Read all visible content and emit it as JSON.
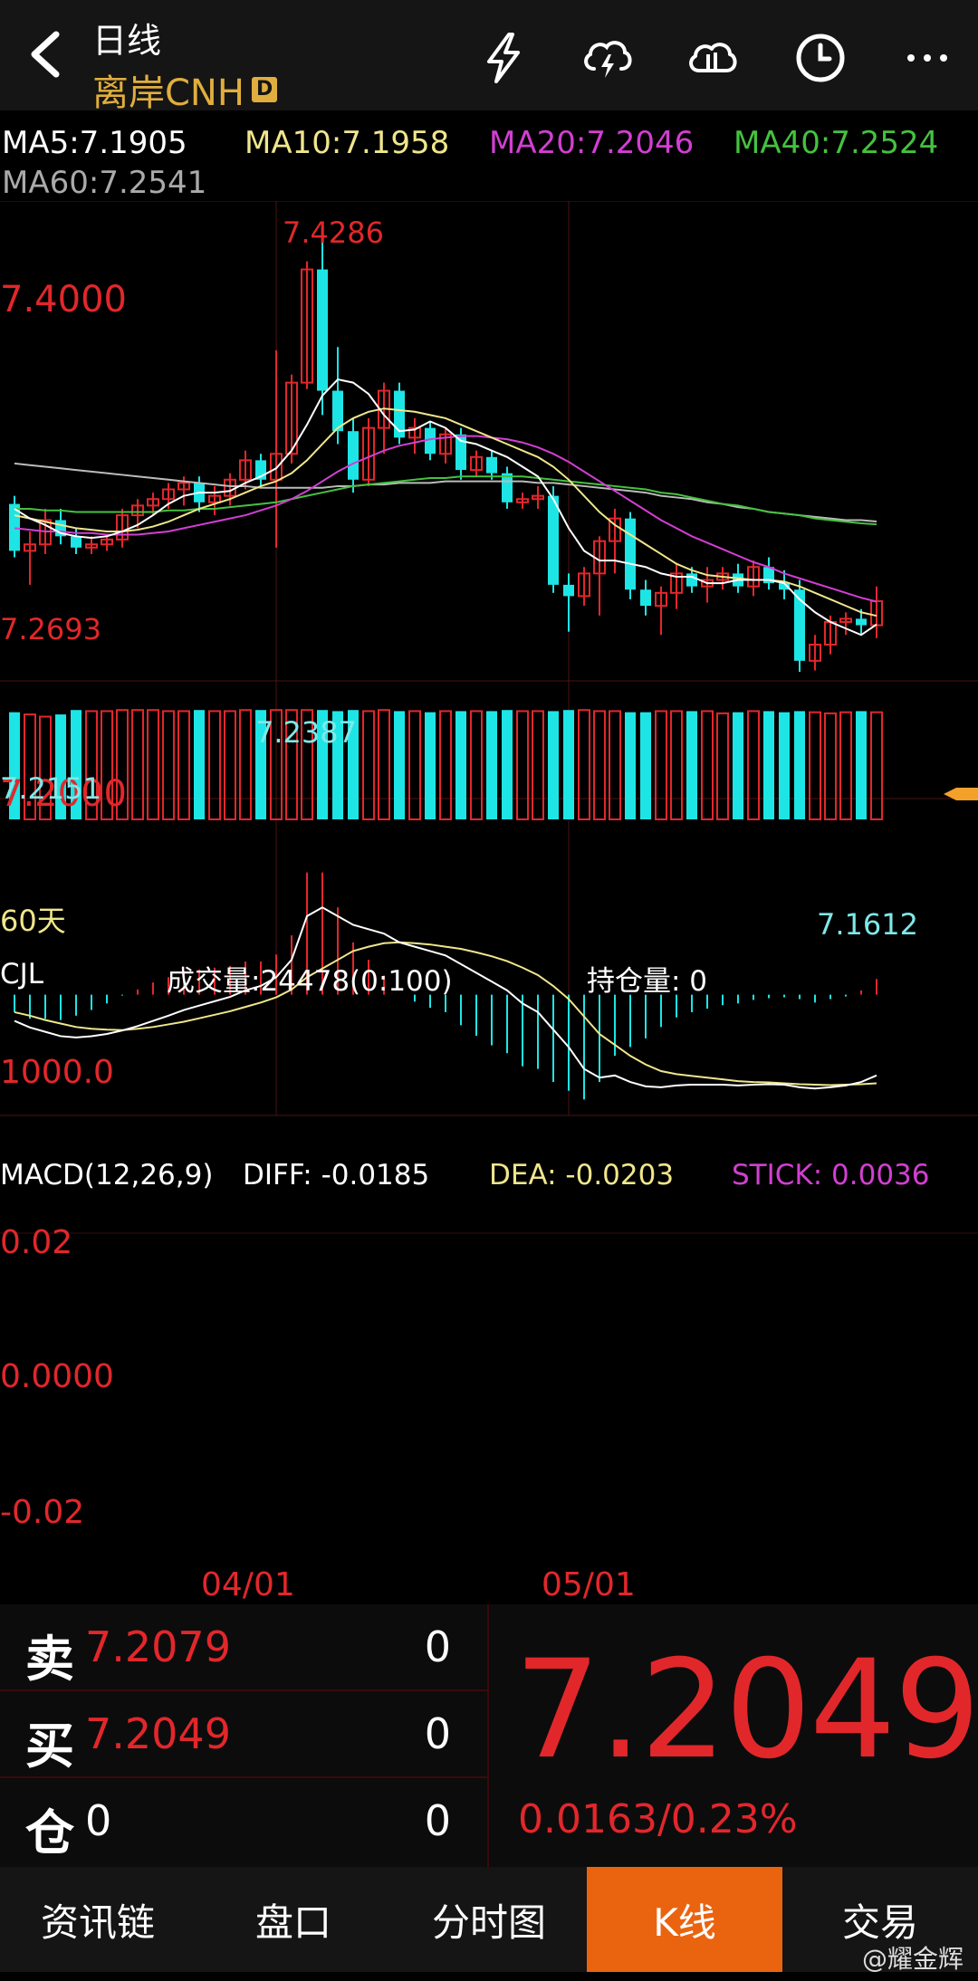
{
  "header": {
    "period": "日线",
    "symbol": "离岸CNH",
    "badge": "D",
    "icons": [
      "flash-icon",
      "cloud-lightning-icon",
      "cloud-compare-icon",
      "clock-icon",
      "more-icon"
    ]
  },
  "ma": {
    "ma5": "MA5:7.1905",
    "ma10": "MA10:7.1958",
    "ma20": "MA20:7.2046",
    "ma40": "MA40:7.2524",
    "ma60": "MA60:7.2541",
    "colors": {
      "ma5": "#ffffff",
      "ma10": "#f0e68c",
      "ma20": "#d23fd2",
      "ma40": "#44c23f",
      "ma60": "#bbbbbb"
    }
  },
  "price_chart": {
    "high_label": "7.4286",
    "low_label": "7.1612",
    "label_left_high": "7.2693",
    "label_left_low": "7.2151",
    "label_mid_low": "7.2387",
    "axis_top": "7.4000",
    "axis_bottom": "7.2000",
    "range_label": "60天"
  },
  "volume": {
    "name": "CJL",
    "volume_text": "成交量:24478(0:100)",
    "oi_text": "持仓量: 0",
    "axis": "1000.0"
  },
  "macd": {
    "name": "MACD(12,26,9)",
    "diff": "DIFF: -0.0185",
    "dea": "DEA: -0.0203",
    "stick": "STICK: 0.0036",
    "axis_top": "0.02",
    "axis_mid": "0.0000",
    "axis_bottom": "-0.02"
  },
  "dates": [
    "04/01",
    "05/01"
  ],
  "quote": {
    "sell_label": "卖",
    "sell_price": "7.2079",
    "sell_vol": "0",
    "buy_label": "买",
    "buy_price": "7.2049",
    "buy_vol": "0",
    "pos_label": "仓",
    "pos_value": "0",
    "pos_vol": "0",
    "last_price": "7.2049",
    "change": "0.0163/0.23%"
  },
  "tabs": [
    "资讯链",
    "盘口",
    "分时图",
    "K线",
    "交易"
  ],
  "active_tab": "K线",
  "watermark": "@耀金辉",
  "chart_data": {
    "type": "candlestick",
    "candles": [
      {
        "o": 7.265,
        "h": 7.27,
        "l": 7.232,
        "c": 7.236
      },
      {
        "o": 7.236,
        "h": 7.248,
        "l": 7.215,
        "c": 7.24
      },
      {
        "o": 7.24,
        "h": 7.262,
        "l": 7.234,
        "c": 7.255
      },
      {
        "o": 7.255,
        "h": 7.262,
        "l": 7.24,
        "c": 7.245
      },
      {
        "o": 7.245,
        "h": 7.25,
        "l": 7.234,
        "c": 7.238
      },
      {
        "o": 7.238,
        "h": 7.245,
        "l": 7.234,
        "c": 7.24
      },
      {
        "o": 7.24,
        "h": 7.246,
        "l": 7.236,
        "c": 7.243
      },
      {
        "o": 7.243,
        "h": 7.262,
        "l": 7.238,
        "c": 7.258
      },
      {
        "o": 7.258,
        "h": 7.268,
        "l": 7.25,
        "c": 7.264
      },
      {
        "o": 7.264,
        "h": 7.272,
        "l": 7.258,
        "c": 7.268
      },
      {
        "o": 7.268,
        "h": 7.278,
        "l": 7.262,
        "c": 7.274
      },
      {
        "o": 7.274,
        "h": 7.282,
        "l": 7.264,
        "c": 7.278
      },
      {
        "o": 7.278,
        "h": 7.282,
        "l": 7.26,
        "c": 7.266
      },
      {
        "o": 7.266,
        "h": 7.276,
        "l": 7.258,
        "c": 7.27
      },
      {
        "o": 7.27,
        "h": 7.284,
        "l": 7.264,
        "c": 7.28
      },
      {
        "o": 7.28,
        "h": 7.298,
        "l": 7.274,
        "c": 7.292
      },
      {
        "o": 7.292,
        "h": 7.296,
        "l": 7.276,
        "c": 7.28
      },
      {
        "o": 7.28,
        "h": 7.36,
        "l": 7.238,
        "c": 7.296
      },
      {
        "o": 7.296,
        "h": 7.345,
        "l": 7.29,
        "c": 7.34
      },
      {
        "o": 7.34,
        "h": 7.415,
        "l": 7.336,
        "c": 7.41
      },
      {
        "o": 7.41,
        "h": 7.4286,
        "l": 7.32,
        "c": 7.335
      },
      {
        "o": 7.335,
        "h": 7.362,
        "l": 7.302,
        "c": 7.31
      },
      {
        "o": 7.31,
        "h": 7.318,
        "l": 7.272,
        "c": 7.28
      },
      {
        "o": 7.28,
        "h": 7.318,
        "l": 7.276,
        "c": 7.312
      },
      {
        "o": 7.312,
        "h": 7.34,
        "l": 7.296,
        "c": 7.335
      },
      {
        "o": 7.335,
        "h": 7.34,
        "l": 7.302,
        "c": 7.306
      },
      {
        "o": 7.306,
        "h": 7.318,
        "l": 7.296,
        "c": 7.312
      },
      {
        "o": 7.312,
        "h": 7.316,
        "l": 7.292,
        "c": 7.296
      },
      {
        "o": 7.296,
        "h": 7.312,
        "l": 7.29,
        "c": 7.308
      },
      {
        "o": 7.308,
        "h": 7.312,
        "l": 7.28,
        "c": 7.286
      },
      {
        "o": 7.286,
        "h": 7.298,
        "l": 7.282,
        "c": 7.294
      },
      {
        "o": 7.294,
        "h": 7.298,
        "l": 7.28,
        "c": 7.284
      },
      {
        "o": 7.284,
        "h": 7.288,
        "l": 7.262,
        "c": 7.266
      },
      {
        "o": 7.266,
        "h": 7.272,
        "l": 7.262,
        "c": 7.268
      },
      {
        "o": 7.268,
        "h": 7.276,
        "l": 7.262,
        "c": 7.27
      },
      {
        "o": 7.27,
        "h": 7.276,
        "l": 7.21,
        "c": 7.215
      },
      {
        "o": 7.215,
        "h": 7.222,
        "l": 7.186,
        "c": 7.208
      },
      {
        "o": 7.208,
        "h": 7.226,
        "l": 7.202,
        "c": 7.222
      },
      {
        "o": 7.222,
        "h": 7.245,
        "l": 7.196,
        "c": 7.242
      },
      {
        "o": 7.242,
        "h": 7.262,
        "l": 7.222,
        "c": 7.256
      },
      {
        "o": 7.256,
        "h": 7.26,
        "l": 7.206,
        "c": 7.212
      },
      {
        "o": 7.212,
        "h": 7.218,
        "l": 7.196,
        "c": 7.202
      },
      {
        "o": 7.202,
        "h": 7.214,
        "l": 7.184,
        "c": 7.21
      },
      {
        "o": 7.21,
        "h": 7.228,
        "l": 7.2,
        "c": 7.222
      },
      {
        "o": 7.222,
        "h": 7.226,
        "l": 7.21,
        "c": 7.214
      },
      {
        "o": 7.214,
        "h": 7.226,
        "l": 7.204,
        "c": 7.218
      },
      {
        "o": 7.218,
        "h": 7.226,
        "l": 7.212,
        "c": 7.222
      },
      {
        "o": 7.222,
        "h": 7.228,
        "l": 7.21,
        "c": 7.214
      },
      {
        "o": 7.214,
        "h": 7.23,
        "l": 7.208,
        "c": 7.226
      },
      {
        "o": 7.226,
        "h": 7.232,
        "l": 7.212,
        "c": 7.216
      },
      {
        "o": 7.216,
        "h": 7.224,
        "l": 7.206,
        "c": 7.212
      },
      {
        "o": 7.212,
        "h": 7.218,
        "l": 7.1612,
        "c": 7.168
      },
      {
        "o": 7.168,
        "h": 7.184,
        "l": 7.162,
        "c": 7.178
      },
      {
        "o": 7.178,
        "h": 7.196,
        "l": 7.172,
        "c": 7.192
      },
      {
        "o": 7.192,
        "h": 7.198,
        "l": 7.184,
        "c": 7.194
      },
      {
        "o": 7.194,
        "h": 7.2,
        "l": 7.184,
        "c": 7.19
      },
      {
        "o": 7.19,
        "h": 7.214,
        "l": 7.182,
        "c": 7.2049
      }
    ],
    "ma5": [
      7.262,
      7.256,
      7.252,
      7.247,
      7.245,
      7.244,
      7.245,
      7.248,
      7.252,
      7.258,
      7.265,
      7.27,
      7.272,
      7.272,
      7.273,
      7.278,
      7.282,
      7.287,
      7.298,
      7.314,
      7.332,
      7.342,
      7.34,
      7.333,
      7.32,
      7.31,
      7.311,
      7.316,
      7.312,
      7.304,
      7.302,
      7.298,
      7.294,
      7.288,
      7.282,
      7.268,
      7.25,
      7.236,
      7.23,
      7.23,
      7.228,
      7.226,
      7.222,
      7.22,
      7.22,
      7.216,
      7.216,
      7.218,
      7.218,
      7.218,
      7.216,
      7.206,
      7.198,
      7.192,
      7.188,
      7.184,
      7.1905
    ],
    "ma10": [
      7.258,
      7.256,
      7.254,
      7.252,
      7.25,
      7.249,
      7.248,
      7.248,
      7.249,
      7.251,
      7.254,
      7.258,
      7.262,
      7.265,
      7.268,
      7.272,
      7.276,
      7.279,
      7.284,
      7.292,
      7.302,
      7.312,
      7.318,
      7.322,
      7.324,
      7.323,
      7.322,
      7.32,
      7.318,
      7.314,
      7.31,
      7.306,
      7.302,
      7.298,
      7.294,
      7.288,
      7.28,
      7.27,
      7.26,
      7.252,
      7.246,
      7.24,
      7.234,
      7.228,
      7.224,
      7.221,
      7.22,
      7.219,
      7.218,
      7.218,
      7.217,
      7.214,
      7.21,
      7.206,
      7.202,
      7.198,
      7.1958
    ],
    "ma20": [
      7.25,
      7.249,
      7.248,
      7.248,
      7.247,
      7.247,
      7.246,
      7.246,
      7.246,
      7.247,
      7.248,
      7.25,
      7.252,
      7.254,
      7.256,
      7.258,
      7.261,
      7.264,
      7.268,
      7.273,
      7.279,
      7.285,
      7.29,
      7.294,
      7.298,
      7.301,
      7.303,
      7.305,
      7.306,
      7.307,
      7.307,
      7.306,
      7.305,
      7.303,
      7.3,
      7.296,
      7.291,
      7.285,
      7.279,
      7.273,
      7.267,
      7.261,
      7.255,
      7.25,
      7.245,
      7.241,
      7.237,
      7.233,
      7.229,
      7.226,
      7.222,
      7.219,
      7.216,
      7.213,
      7.21,
      7.207,
      7.2046
    ],
    "ma40": [
      7.262,
      7.262,
      7.261,
      7.261,
      7.26,
      7.26,
      7.26,
      7.26,
      7.26,
      7.26,
      7.261,
      7.261,
      7.262,
      7.262,
      7.263,
      7.264,
      7.265,
      7.266,
      7.268,
      7.27,
      7.272,
      7.274,
      7.276,
      7.277,
      7.278,
      7.279,
      7.28,
      7.281,
      7.281,
      7.282,
      7.282,
      7.282,
      7.282,
      7.282,
      7.281,
      7.28,
      7.279,
      7.278,
      7.277,
      7.276,
      7.275,
      7.274,
      7.272,
      7.271,
      7.269,
      7.267,
      7.265,
      7.264,
      7.262,
      7.26,
      7.259,
      7.258,
      7.256,
      7.255,
      7.254,
      7.253,
      7.2524
    ],
    "ma60": [
      7.29,
      7.289,
      7.288,
      7.287,
      7.286,
      7.285,
      7.284,
      7.283,
      7.282,
      7.281,
      7.28,
      7.279,
      7.278,
      7.277,
      7.276,
      7.276,
      7.275,
      7.275,
      7.275,
      7.275,
      7.275,
      7.276,
      7.276,
      7.277,
      7.277,
      7.278,
      7.278,
      7.278,
      7.279,
      7.279,
      7.279,
      7.279,
      7.279,
      7.279,
      7.278,
      7.278,
      7.277,
      7.276,
      7.275,
      7.274,
      7.273,
      7.272,
      7.27,
      7.269,
      7.268,
      7.266,
      7.265,
      7.263,
      7.262,
      7.26,
      7.259,
      7.258,
      7.257,
      7.256,
      7.255,
      7.255,
      7.2541
    ],
    "volume_relative": [
      0.97,
      0.95,
      0.93,
      0.95,
      0.99,
      0.98,
      0.98,
      0.99,
      0.99,
      0.99,
      0.98,
      0.98,
      0.99,
      0.98,
      0.98,
      0.99,
      0.99,
      0.99,
      0.99,
      0.99,
      0.99,
      0.98,
      0.99,
      0.98,
      0.99,
      0.98,
      0.98,
      0.97,
      0.98,
      0.98,
      0.98,
      0.98,
      0.99,
      0.98,
      0.98,
      0.98,
      0.99,
      0.99,
      0.98,
      0.98,
      0.97,
      0.97,
      0.98,
      0.98,
      0.98,
      0.98,
      0.96,
      0.97,
      0.98,
      0.98,
      0.97,
      0.98,
      0.97,
      0.96,
      0.97,
      0.98,
      0.97
    ],
    "macd_diff": [
      -0.006,
      -0.0075,
      -0.0085,
      -0.0095,
      -0.0098,
      -0.0095,
      -0.009,
      -0.0082,
      -0.0072,
      -0.006,
      -0.0048,
      -0.0035,
      -0.0025,
      -0.0015,
      -0.0005,
      0.001,
      0.002,
      0.004,
      0.008,
      0.018,
      0.02,
      0.018,
      0.016,
      0.015,
      0.014,
      0.012,
      0.011,
      0.01,
      0.009,
      0.007,
      0.005,
      0.003,
      0.001,
      -0.002,
      -0.004,
      -0.008,
      -0.012,
      -0.017,
      -0.019,
      -0.0185,
      -0.02,
      -0.021,
      -0.0212,
      -0.0208,
      -0.0206,
      -0.0206,
      -0.0206,
      -0.0208,
      -0.0206,
      -0.0205,
      -0.0206,
      -0.0212,
      -0.0215,
      -0.0212,
      -0.0208,
      -0.02,
      -0.0185
    ],
    "macd_dea": [
      -0.004,
      -0.0048,
      -0.0058,
      -0.0066,
      -0.0074,
      -0.0078,
      -0.008,
      -0.0081,
      -0.0078,
      -0.0074,
      -0.0068,
      -0.0062,
      -0.0054,
      -0.0046,
      -0.0038,
      -0.0028,
      -0.0018,
      -0.0006,
      0.0012,
      0.004,
      0.006,
      0.008,
      0.01,
      0.011,
      0.0118,
      0.012,
      0.0118,
      0.0115,
      0.011,
      0.0105,
      0.0097,
      0.0088,
      0.0077,
      0.0062,
      0.0045,
      0.002,
      -0.001,
      -0.005,
      -0.009,
      -0.0115,
      -0.014,
      -0.016,
      -0.0175,
      -0.0182,
      -0.0186,
      -0.019,
      -0.0194,
      -0.0198,
      -0.02,
      -0.0201,
      -0.0203,
      -0.0205,
      -0.0206,
      -0.0207,
      -0.0206,
      -0.0205,
      -0.0203
    ],
    "macd_stick": [
      -0.004,
      -0.0055,
      -0.0055,
      -0.0058,
      -0.0048,
      -0.0035,
      -0.002,
      -0.0002,
      0.0012,
      0.0028,
      0.004,
      0.0054,
      0.0058,
      0.0062,
      0.0066,
      0.0076,
      0.0076,
      0.0092,
      0.0136,
      0.028,
      0.028,
      0.02,
      0.012,
      0.008,
      0.0044,
      0.0,
      -0.0016,
      -0.003,
      -0.004,
      -0.007,
      -0.0094,
      -0.0116,
      -0.0134,
      -0.0164,
      -0.017,
      -0.02,
      -0.022,
      -0.024,
      -0.02,
      -0.014,
      -0.012,
      -0.01,
      -0.0074,
      -0.0052,
      -0.004,
      -0.0032,
      -0.0024,
      -0.002,
      -0.0012,
      -0.0008,
      -0.0006,
      -0.001,
      -0.0018,
      -0.001,
      -0.0004,
      0.001,
      0.0036
    ],
    "date_ticks": [
      {
        "index": 17,
        "label": "04/01"
      },
      {
        "index": 36,
        "label": "05/01"
      }
    ],
    "price_range": [
      7.15,
      7.44
    ],
    "macd_range": [
      -0.026,
      0.03
    ],
    "up_color": "#e2272b",
    "down_color": "#1ee5e5"
  }
}
